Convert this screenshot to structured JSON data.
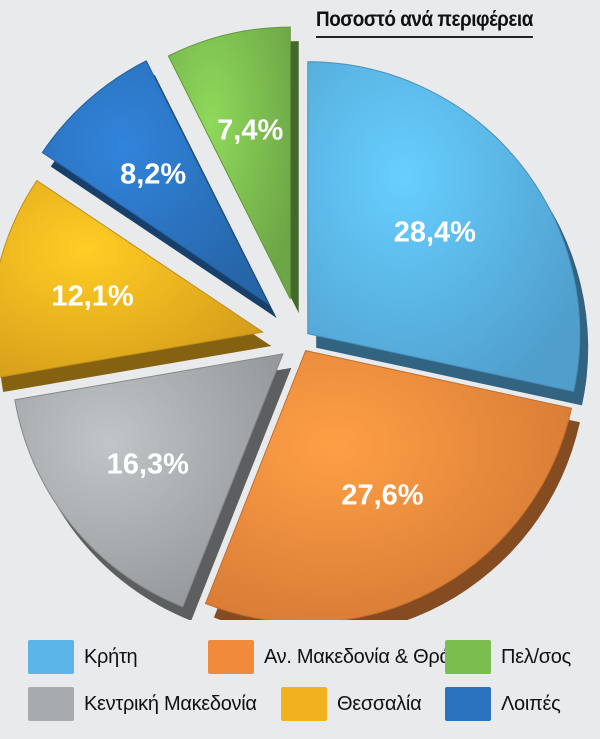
{
  "chart_data": {
    "type": "pie",
    "title": "Ποσοστό ανά περιφέρεια",
    "categories": [
      "Κρήτη",
      "Αν. Μακεδονία & Θράκη",
      "Κεντρική Μακεδονία",
      "Θεσσαλία",
      "Λοιπές",
      "Πελ/σος"
    ],
    "values": [
      28.4,
      27.6,
      16.3,
      12.1,
      8.2,
      7.4
    ],
    "value_labels": [
      "28,4%",
      "27,6%",
      "16,3%",
      "12,1%",
      "8,2%",
      "7,4%"
    ],
    "colors": [
      "#5ab4e8",
      "#f28a3c",
      "#a7abae",
      "#f2b21f",
      "#2b73bf",
      "#7cbd4f"
    ],
    "legend_placement": "bottom"
  },
  "legend": {
    "items": [
      {
        "label": "Κρήτη",
        "color": "#5ab4e8"
      },
      {
        "label": "Αν. Μακεδονία & Θράκη",
        "color": "#f28a3c"
      },
      {
        "label": "Πελ/σος",
        "color": "#7cbd4f"
      },
      {
        "label": "Κεντρική Μακεδονία",
        "color": "#a7abae"
      },
      {
        "label": "Θεσσαλία",
        "color": "#f2b21f"
      },
      {
        "label": "Λοιπές",
        "color": "#2b73bf"
      }
    ]
  }
}
